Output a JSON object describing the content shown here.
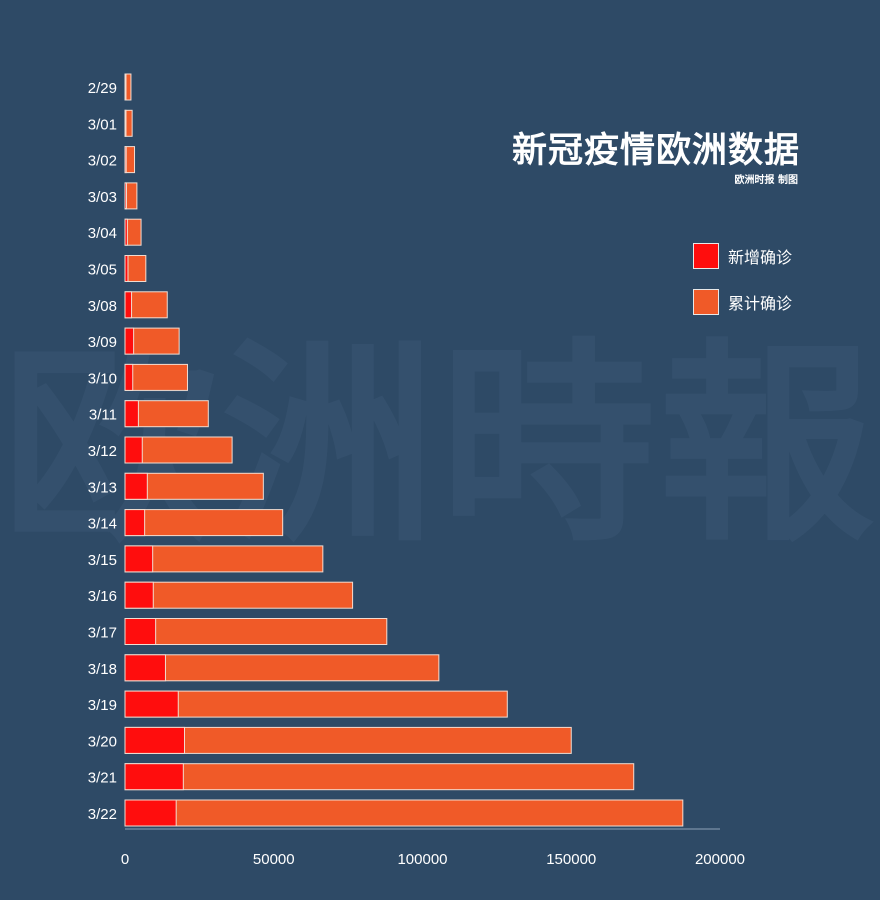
{
  "title": "新冠疫情欧洲数据",
  "credit": "欧洲时报 制图",
  "watermark": "欧洲時報",
  "colors": {
    "background": "#2e4a66",
    "new_cases": "#ff0d0d",
    "cumulative": "#f05a28",
    "axis": "#8fa3b8",
    "text": "#ffffff"
  },
  "chart_data": {
    "type": "bar",
    "orientation": "horizontal",
    "stacked": true,
    "categories": [
      "2/29",
      "3/01",
      "3/02",
      "3/03",
      "3/04",
      "3/05",
      "3/08",
      "3/09",
      "3/10",
      "3/11",
      "3/12",
      "3/13",
      "3/14",
      "3/15",
      "3/16",
      "3/17",
      "3/18",
      "3/19",
      "3/20",
      "3/21",
      "3/22"
    ],
    "series": [
      {
        "name": "新增确诊",
        "values": [
          300,
          300,
          400,
          500,
          800,
          1000,
          2200,
          2900,
          2600,
          4500,
          5800,
          7500,
          6600,
          9300,
          9500,
          10300,
          13600,
          17900,
          20000,
          19600,
          17200
        ]
      },
      {
        "name": "累计确诊",
        "values": [
          2000,
          2400,
          3200,
          4000,
          5400,
          7000,
          14200,
          18200,
          21000,
          28000,
          36000,
          46500,
          53000,
          66500,
          76500,
          88000,
          105500,
          128500,
          150000,
          171000,
          187500
        ]
      }
    ],
    "xticks": [
      0,
      50000,
      100000,
      150000,
      200000
    ],
    "xlim": [
      0,
      200000
    ],
    "xlabel": "",
    "ylabel": "",
    "legend": "right"
  }
}
